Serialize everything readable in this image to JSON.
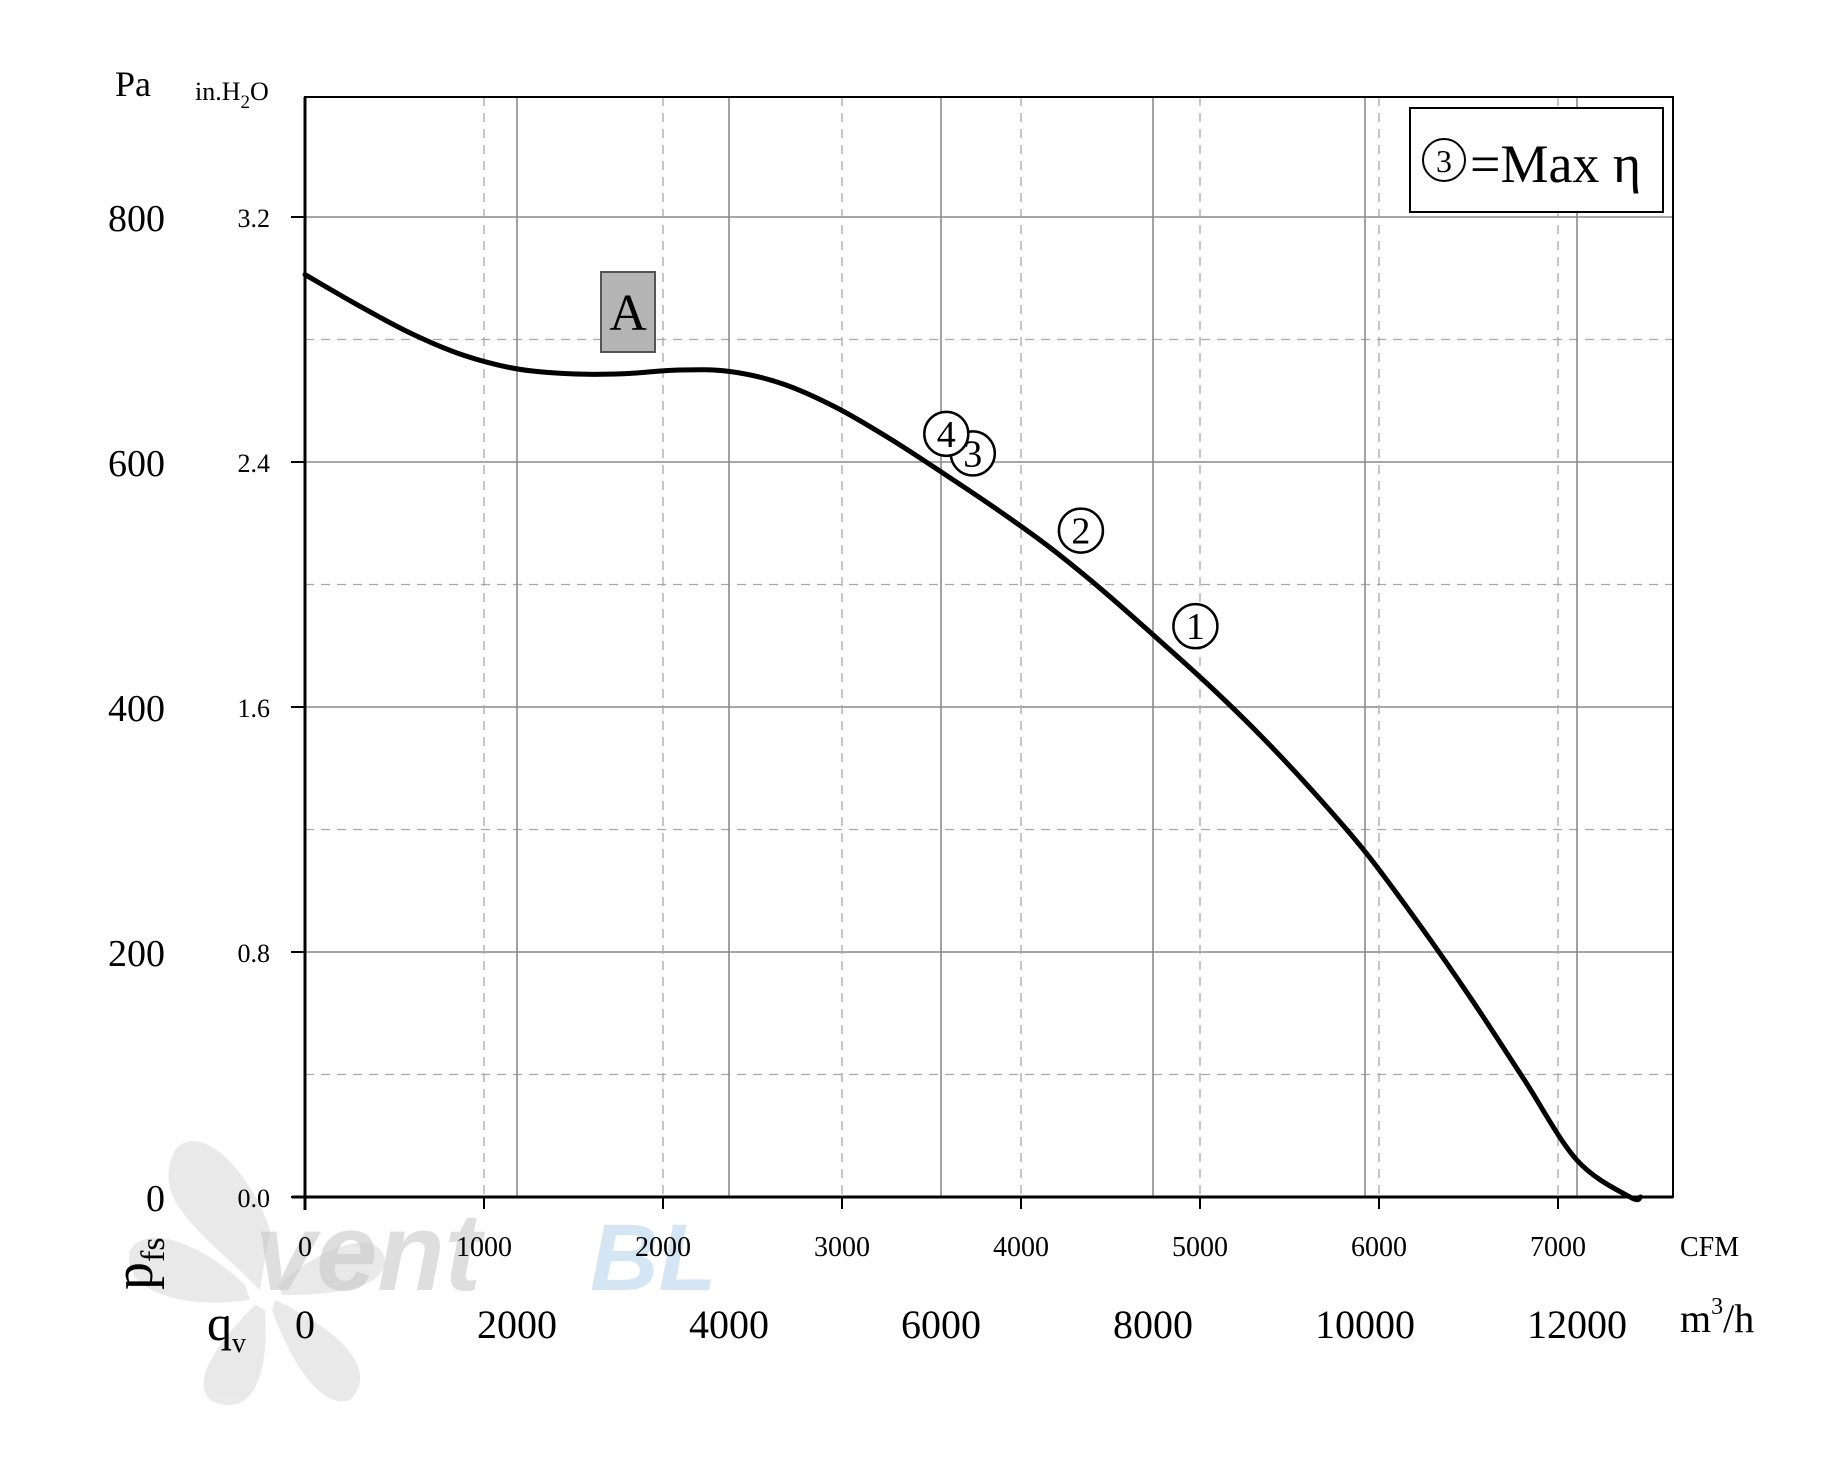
{
  "chart_data": {
    "type": "line",
    "legend_text": "=Max η",
    "legend_marker": "3",
    "legend_position": "top-right",
    "curve_label": "A",
    "y_units_left": "Pa",
    "y_units_right_main": "in.H",
    "y_units_right_sub": "2",
    "y_units_right_end": "O",
    "y_axis_symbol": "p",
    "y_axis_symbol_sub": "fs",
    "x_axis_symbol": "q",
    "x_axis_symbol_sub": "v",
    "x_units_top": "CFM",
    "x_units_bottom_main": "m",
    "x_units_bottom_sup": "3",
    "x_units_bottom_end": "/h",
    "xlim": [
      0,
      13000
    ],
    "ylim": [
      0,
      900
    ],
    "grid": true,
    "y_ticks_pa": [
      "800",
      "600",
      "400",
      "200",
      "0"
    ],
    "y_ticks_inh2o": [
      "3.2",
      "2.4",
      "1.6",
      "0.8",
      "0.0"
    ],
    "x_ticks_cfm": [
      "0",
      "1000",
      "2000",
      "3000",
      "4000",
      "5000",
      "6000",
      "7000"
    ],
    "x_ticks_m3h": [
      "0",
      "2000",
      "4000",
      "6000",
      "8000",
      "10000",
      "12000"
    ],
    "x": [
      0,
      500,
      1000,
      1500,
      2000,
      2500,
      3000,
      3500,
      4000,
      4500,
      5000,
      5500,
      6000,
      6500,
      7000,
      7500,
      8000,
      8500,
      9000,
      9500,
      10000,
      10500,
      11000,
      11500,
      12000,
      12500,
      12600
    ],
    "y": [
      753,
      728,
      705,
      687,
      676,
      672,
      672,
      675,
      674,
      664,
      645,
      620,
      592,
      563,
      532,
      497,
      459,
      420,
      378,
      332,
      282,
      224,
      162,
      96,
      30,
      0,
      0
    ],
    "operating_points": [
      {
        "label": "1",
        "x": 8400,
        "y": 466
      },
      {
        "label": "2",
        "x": 7320,
        "y": 544
      },
      {
        "label": "3",
        "x": 6300,
        "y": 607
      },
      {
        "label": "4",
        "x": 6050,
        "y": 623
      }
    ],
    "watermark": "vent",
    "watermark_accent": "BL"
  }
}
